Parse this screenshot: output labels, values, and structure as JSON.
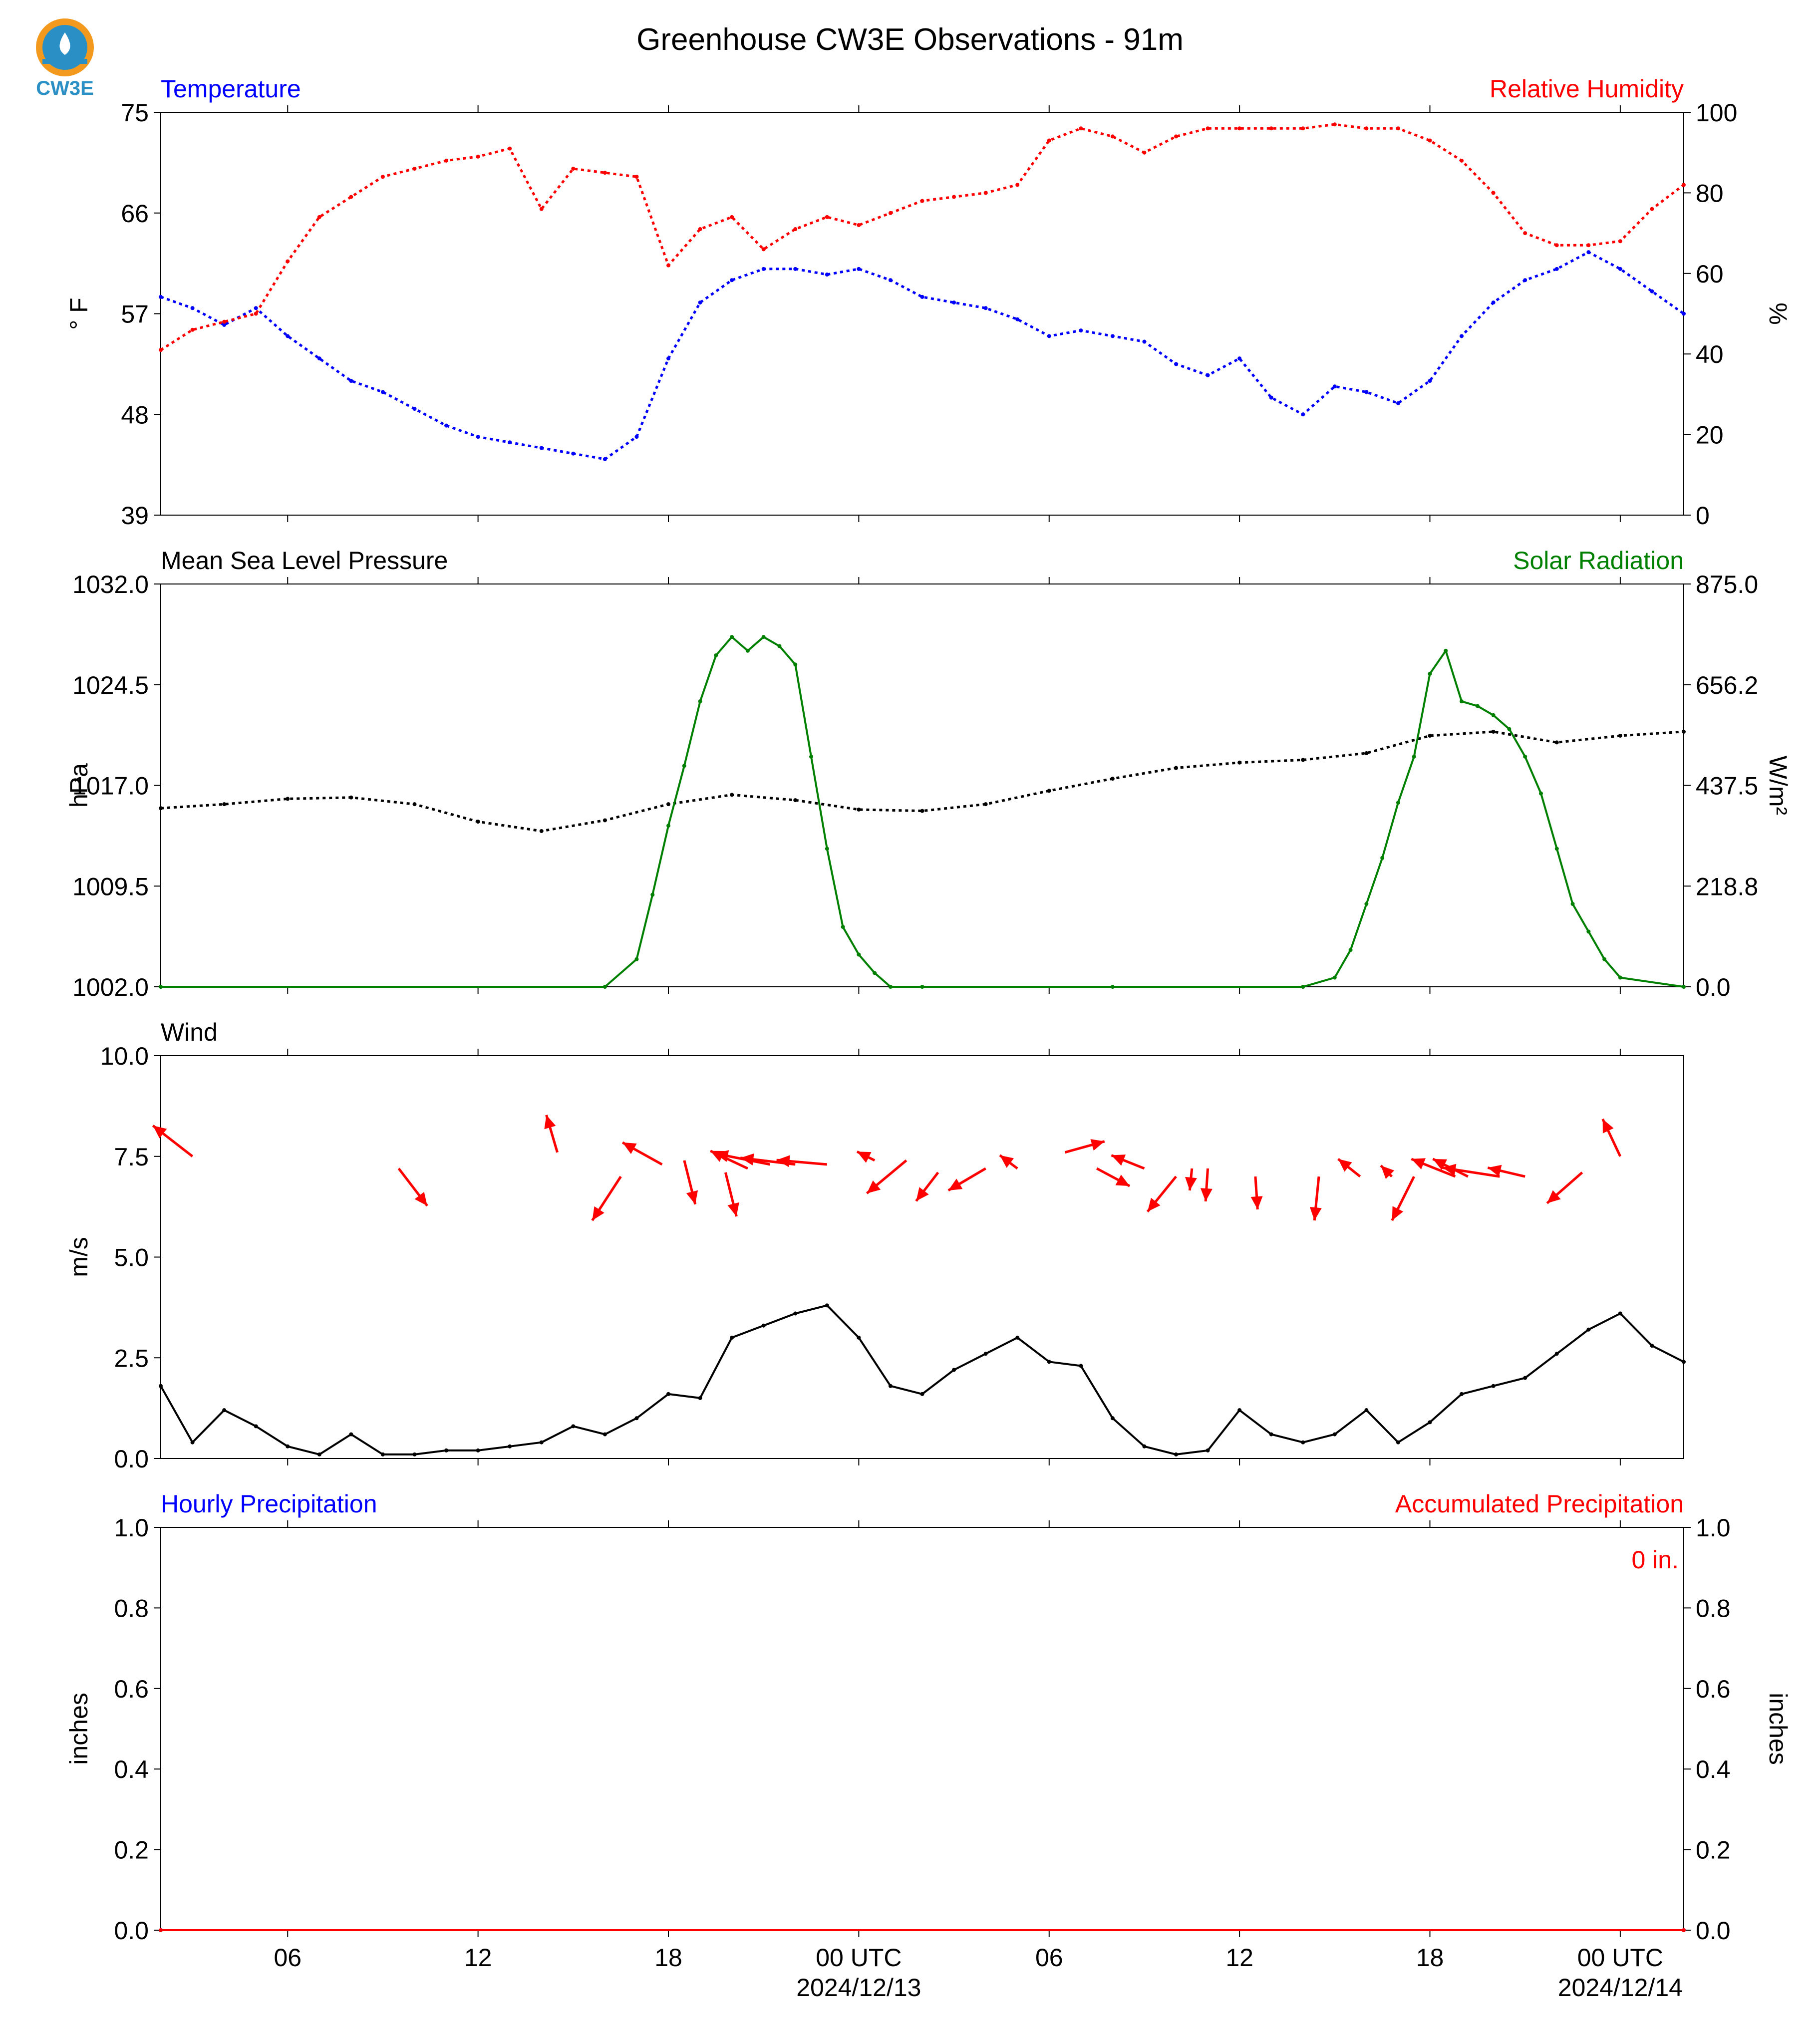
{
  "page": {
    "title": "Greenhouse CW3E Observations - 91m",
    "logo_text": "CW3E"
  },
  "colors": {
    "temperature": "#0000ff",
    "humidity": "#ff0000",
    "pressure": "#000000",
    "solar": "#008000",
    "wind_arrow": "#ff0000",
    "wind_speed": "#000000",
    "hourly_precip": "#0000ff",
    "accum_precip": "#ff0000",
    "logo_orange": "#f39a1e",
    "logo_blue": "#2a8fc4"
  },
  "x_axis": {
    "range_hours": [
      0,
      48
    ],
    "tick_hours": [
      4,
      10,
      16,
      22,
      28,
      34,
      40,
      46
    ],
    "tick_labels": [
      "06",
      "12",
      "18",
      "00 UTC",
      "06",
      "12",
      "18",
      "00 UTC"
    ],
    "date_labels": [
      "2024/12/13",
      "2024/12/14"
    ]
  },
  "chart_data": [
    {
      "type": "line",
      "panel": "temperature_humidity",
      "left_title": "Temperature",
      "right_title": "Relative Humidity",
      "ylabel_left": "° F",
      "ylabel_right": "%",
      "ylim_left": [
        39,
        75
      ],
      "ylim_right": [
        0,
        100
      ],
      "yticks_left": [
        "39",
        "48",
        "57",
        "66",
        "75"
      ],
      "yticks_right": [
        "0",
        "20",
        "40",
        "60",
        "80",
        "100"
      ],
      "series": [
        {
          "name": "Temperature",
          "axis": "left",
          "x": [
            0,
            1,
            2,
            3,
            4,
            5,
            6,
            7,
            8,
            9,
            10,
            11,
            12,
            13,
            14,
            15,
            16,
            17,
            18,
            19,
            20,
            21,
            22,
            23,
            24,
            25,
            26,
            27,
            28,
            29,
            30,
            31,
            32,
            33,
            34,
            35,
            36,
            37,
            38,
            39,
            40,
            41,
            42,
            43,
            44,
            45,
            46,
            47,
            48
          ],
          "values": [
            58.5,
            57.5,
            56,
            57.5,
            55,
            53,
            51,
            50,
            48.5,
            47,
            46,
            45.5,
            45,
            44.5,
            44,
            46,
            53,
            58,
            60,
            61,
            61,
            60.5,
            61,
            60,
            58.5,
            58,
            57.5,
            56.5,
            55,
            55.5,
            55,
            54.5,
            52.5,
            51.5,
            53,
            49.5,
            48,
            50.5,
            50,
            49,
            51,
            55,
            58,
            60,
            61,
            62.5,
            61,
            59,
            57
          ]
        },
        {
          "name": "Relative Humidity",
          "axis": "right",
          "x": [
            0,
            1,
            2,
            3,
            4,
            5,
            6,
            7,
            8,
            9,
            10,
            11,
            12,
            13,
            14,
            15,
            16,
            17,
            18,
            19,
            20,
            21,
            22,
            23,
            24,
            25,
            26,
            27,
            28,
            29,
            30,
            31,
            32,
            33,
            34,
            35,
            36,
            37,
            38,
            39,
            40,
            41,
            42,
            43,
            44,
            45,
            46,
            47,
            48
          ],
          "values": [
            41,
            46,
            48,
            50,
            63,
            74,
            79,
            84,
            86,
            88,
            89,
            91,
            76,
            86,
            85,
            84,
            62,
            71,
            74,
            66,
            71,
            74,
            72,
            75,
            78,
            79,
            80,
            82,
            93,
            96,
            94,
            90,
            94,
            96,
            96,
            96,
            96,
            97,
            96,
            96,
            93,
            88,
            80,
            70,
            67,
            67,
            68,
            76,
            82
          ]
        }
      ]
    },
    {
      "type": "line",
      "panel": "pressure_solar",
      "left_title": "Mean Sea Level Pressure",
      "right_title": "Solar Radiation",
      "ylabel_left": "hPa",
      "ylabel_right": "W/m²",
      "ylim_left": [
        1002.0,
        1032.0
      ],
      "ylim_right": [
        0.0,
        875.0
      ],
      "yticks_left": [
        "1002.0",
        "1009.5",
        "1017.0",
        "1024.5",
        "1032.0"
      ],
      "yticks_right": [
        "0.0",
        "218.8",
        "437.5",
        "656.2",
        "875.0"
      ],
      "series": [
        {
          "name": "Mean Sea Level Pressure",
          "axis": "left",
          "x": [
            0,
            2,
            4,
            6,
            8,
            10,
            12,
            14,
            16,
            18,
            20,
            22,
            24,
            26,
            28,
            30,
            32,
            34,
            36,
            38,
            40,
            42,
            44,
            46,
            48
          ],
          "values": [
            1015.3,
            1015.6,
            1016.0,
            1016.1,
            1015.6,
            1014.3,
            1013.6,
            1014.4,
            1015.6,
            1016.3,
            1015.9,
            1015.2,
            1015.1,
            1015.6,
            1016.6,
            1017.5,
            1018.3,
            1018.7,
            1018.9,
            1019.4,
            1020.7,
            1021.0,
            1020.2,
            1020.7,
            1021.0
          ]
        },
        {
          "name": "Solar Radiation",
          "axis": "right",
          "x": [
            0,
            14,
            15,
            15.5,
            16,
            16.5,
            17,
            17.5,
            18,
            18.5,
            19,
            19.5,
            20,
            20.5,
            21,
            21.5,
            22,
            22.5,
            23,
            24,
            30,
            36,
            37,
            37.5,
            38,
            38.5,
            39,
            39.5,
            40,
            40.5,
            41,
            41.5,
            42,
            42.5,
            43,
            43.5,
            44,
            44.5,
            45,
            45.5,
            46,
            48
          ],
          "values": [
            0,
            0,
            60,
            200,
            350,
            480,
            620,
            720,
            760,
            730,
            760,
            740,
            700,
            500,
            300,
            130,
            70,
            30,
            0,
            0,
            0,
            0,
            20,
            80,
            180,
            280,
            400,
            500,
            680,
            730,
            620,
            610,
            590,
            560,
            500,
            420,
            300,
            180,
            120,
            60,
            20,
            0
          ]
        }
      ]
    },
    {
      "type": "line",
      "panel": "wind",
      "left_title": "Wind",
      "ylabel_left": "m/s",
      "ylim_left": [
        0.0,
        10.0
      ],
      "yticks_left": [
        "0.0",
        "2.5",
        "5.0",
        "7.5",
        "10.0"
      ],
      "series": [
        {
          "name": "Wind Speed",
          "axis": "left",
          "x": [
            0,
            1,
            2,
            3,
            4,
            5,
            6,
            7,
            8,
            9,
            10,
            11,
            12,
            13,
            14,
            15,
            16,
            17,
            18,
            19,
            20,
            21,
            22,
            23,
            24,
            25,
            26,
            27,
            28,
            29,
            30,
            31,
            32,
            33,
            34,
            35,
            36,
            37,
            38,
            39,
            40,
            41,
            42,
            43,
            44,
            45,
            46,
            47,
            48
          ],
          "values": [
            1.8,
            0.4,
            1.2,
            0.8,
            0.3,
            0.1,
            0.6,
            0.1,
            0.1,
            0.2,
            0.2,
            0.3,
            0.4,
            0.8,
            0.6,
            1.0,
            1.6,
            1.5,
            3.0,
            3.3,
            3.6,
            3.8,
            3.0,
            1.8,
            1.6,
            2.2,
            2.6,
            3.0,
            2.4,
            2.3,
            1.0,
            0.3,
            0.1,
            0.2,
            1.2,
            0.6,
            0.4,
            0.6,
            1.2,
            0.4,
            0.9,
            1.6,
            1.8,
            2.0,
            2.6,
            3.2,
            3.6,
            2.8,
            2.4
          ]
        }
      ],
      "arrows": {
        "x": [
          1,
          7.5,
          12.5,
          14.5,
          15.8,
          16.5,
          17.8,
          18.5,
          19.2,
          20,
          21,
          22.5,
          23.5,
          24.5,
          26,
          27,
          28.5,
          29.5,
          31,
          32,
          32.5,
          33,
          34.5,
          36.5,
          37.8,
          38.8,
          39.5,
          40.8,
          41.2,
          42.2,
          43,
          44.8,
          46
        ],
        "y": [
          7.5,
          7.2,
          7.6,
          7.0,
          7.3,
          7.4,
          7.1,
          7.2,
          7.3,
          7.3,
          7.3,
          7.4,
          7.4,
          7.1,
          7.2,
          7.2,
          7.6,
          7.2,
          7.2,
          7.0,
          7.2,
          7.2,
          7.0,
          7.0,
          7.0,
          7.0,
          7.0,
          7.0,
          7.0,
          7.0,
          7.0,
          7.1,
          7.5
        ],
        "u": [
          -1.8,
          1.3,
          -0.5,
          -1.3,
          -1.8,
          0.5,
          0.5,
          -1.7,
          -2.5,
          -2.5,
          -2.3,
          -0.8,
          -1.8,
          -1.0,
          -1.7,
          -0.8,
          1.8,
          1.5,
          -1.5,
          -1.3,
          -0.1,
          -0.1,
          0.1,
          -0.2,
          -1.0,
          -0.5,
          -1.0,
          -2.0,
          -1.6,
          -2.6,
          -1.7,
          -1.6,
          -0.8
        ],
        "v": [
          1.4,
          -1.7,
          1.7,
          -2.0,
          1.0,
          -2.0,
          -2.0,
          0.8,
          0.5,
          0.3,
          0.2,
          0.4,
          -1.5,
          -1.3,
          -1.0,
          0.6,
          0.5,
          -0.8,
          0.6,
          -1.6,
          -1.0,
          -1.5,
          -1.5,
          -2.0,
          0.8,
          0.5,
          -2.0,
          0.8,
          0.8,
          0.4,
          0.4,
          -1.4,
          1.7
        ]
      }
    },
    {
      "type": "line",
      "panel": "precipitation",
      "left_title": "Hourly Precipitation",
      "right_title": "Accumulated Precipitation",
      "ylabel_left": "inches",
      "ylabel_right": "inches",
      "ylim_left": [
        0.0,
        1.0
      ],
      "ylim_right": [
        0.0,
        1.0
      ],
      "yticks_left": [
        "0.0",
        "0.2",
        "0.4",
        "0.6",
        "0.8",
        "1.0"
      ],
      "yticks_right": [
        "0.0",
        "0.2",
        "0.4",
        "0.6",
        "0.8",
        "1.0"
      ],
      "annotation": "0 in.",
      "series": [
        {
          "name": "Hourly Precipitation",
          "axis": "left",
          "x": [
            0,
            48
          ],
          "values": [
            0,
            0
          ]
        },
        {
          "name": "Accumulated Precipitation",
          "axis": "right",
          "x": [
            0,
            48
          ],
          "values": [
            0,
            0
          ]
        }
      ]
    }
  ]
}
